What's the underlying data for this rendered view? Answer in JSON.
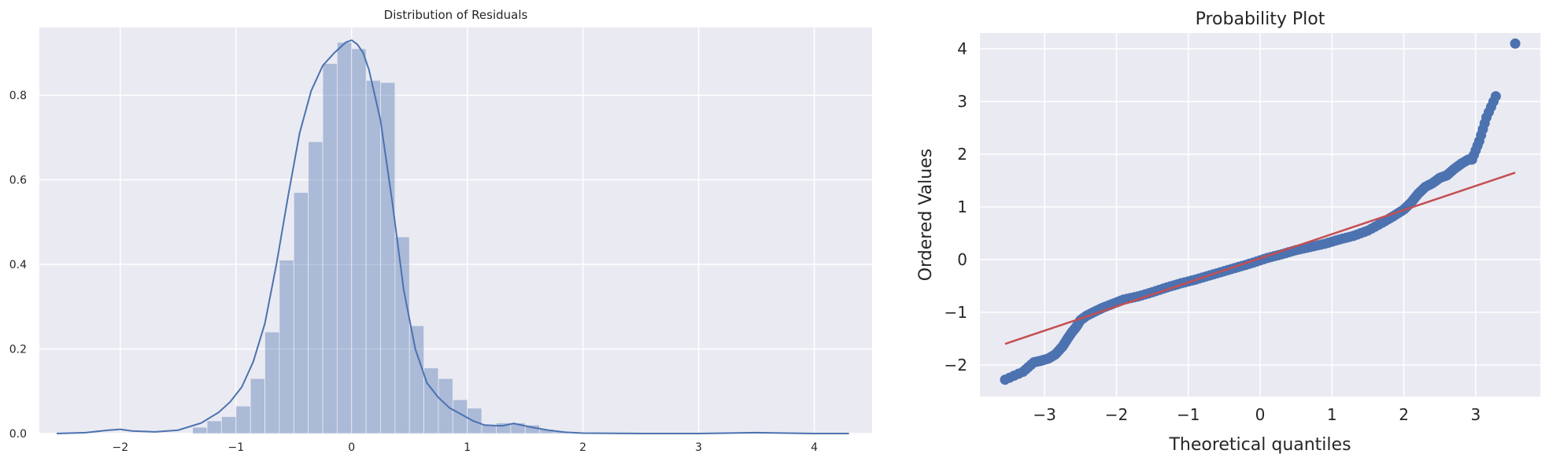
{
  "chart_data": [
    {
      "type": "bar",
      "title": "Distribution of Residuals",
      "xlabel": "",
      "ylabel": "",
      "xlim": [
        -2.7,
        4.5
      ],
      "ylim": [
        0,
        0.96
      ],
      "xticks": [
        "−2",
        "−1",
        "0",
        "1",
        "2",
        "3",
        "4"
      ],
      "xtick_values": [
        -2,
        -1,
        0,
        1,
        2,
        3,
        4
      ],
      "yticks": [
        "0.0",
        "0.2",
        "0.4",
        "0.6",
        "0.8"
      ],
      "ytick_values": [
        0,
        0.2,
        0.4,
        0.6,
        0.8
      ],
      "grid": true,
      "histogram": {
        "bin_width": 0.125,
        "bin_starts": [
          -1.375,
          -1.25,
          -1.125,
          -1.0,
          -0.875,
          -0.75,
          -0.625,
          -0.5,
          -0.375,
          -0.25,
          -0.125,
          0.0,
          0.125,
          0.25,
          0.375,
          0.5,
          0.625,
          0.75,
          0.875,
          1.0,
          1.125,
          1.25,
          1.375,
          1.5,
          1.625,
          1.75
        ],
        "densities": [
          0.015,
          0.03,
          0.04,
          0.065,
          0.13,
          0.24,
          0.41,
          0.57,
          0.69,
          0.875,
          0.925,
          0.91,
          0.835,
          0.83,
          0.465,
          0.255,
          0.155,
          0.13,
          0.08,
          0.06,
          0.02,
          0.025,
          0.025,
          0.02,
          0.01,
          0.005
        ]
      },
      "kde_curve": {
        "x": [
          -2.55,
          -2.3,
          -2.1,
          -2.0,
          -1.9,
          -1.7,
          -1.5,
          -1.3,
          -1.15,
          -1.05,
          -0.95,
          -0.85,
          -0.75,
          -0.65,
          -0.55,
          -0.45,
          -0.35,
          -0.25,
          -0.15,
          -0.05,
          0.0,
          0.05,
          0.1,
          0.15,
          0.25,
          0.35,
          0.45,
          0.55,
          0.65,
          0.75,
          0.85,
          0.95,
          1.05,
          1.15,
          1.3,
          1.4,
          1.55,
          1.7,
          1.85,
          2.0,
          2.5,
          3.0,
          3.5,
          4.0,
          4.3
        ],
        "y": [
          0.0,
          0.002,
          0.008,
          0.01,
          0.006,
          0.004,
          0.008,
          0.025,
          0.05,
          0.075,
          0.11,
          0.17,
          0.26,
          0.4,
          0.56,
          0.71,
          0.81,
          0.87,
          0.9,
          0.925,
          0.93,
          0.92,
          0.9,
          0.86,
          0.74,
          0.55,
          0.34,
          0.2,
          0.12,
          0.085,
          0.06,
          0.045,
          0.03,
          0.02,
          0.018,
          0.024,
          0.015,
          0.008,
          0.003,
          0.001,
          0.0,
          0.0,
          0.002,
          0.0,
          0.0
        ]
      },
      "colors": {
        "bar": "#4c72b0",
        "line": "#4c72b0",
        "background": "#eaeaf2"
      }
    },
    {
      "type": "scatter",
      "title": "Probability Plot",
      "xlabel": "Theoretical quantiles",
      "ylabel": "Ordered Values",
      "xlim": [
        -3.9,
        3.9
      ],
      "ylim": [
        -2.6,
        4.3
      ],
      "xticks": [
        "−3",
        "−2",
        "−1",
        "0",
        "1",
        "2",
        "3"
      ],
      "xtick_values": [
        -3,
        -2,
        -1,
        0,
        1,
        2,
        3
      ],
      "yticks": [
        "−2",
        "−1",
        "0",
        "1",
        "2",
        "3",
        "4"
      ],
      "ytick_values": [
        -2,
        -1,
        0,
        1,
        2,
        3,
        4
      ],
      "grid": true,
      "points": {
        "x": [
          -3.55,
          -3.3,
          -3.15,
          -3.05,
          -2.95,
          -2.85,
          -2.75,
          -2.68,
          -2.62,
          -2.56,
          -2.5,
          -2.42,
          -2.32,
          -2.2,
          -2.05,
          -1.9,
          -1.7,
          -1.5,
          -1.3,
          -1.1,
          -0.9,
          -0.7,
          -0.5,
          -0.3,
          -0.1,
          0.1,
          0.3,
          0.5,
          0.7,
          0.9,
          1.1,
          1.3,
          1.5,
          1.7,
          1.85,
          2.0,
          2.1,
          2.2,
          2.3,
          2.4,
          2.5,
          2.6,
          2.7,
          2.8,
          2.9,
          2.95,
          3.05,
          3.15,
          3.28,
          3.55
        ],
        "y": [
          -2.28,
          -2.13,
          -1.95,
          -1.92,
          -1.88,
          -1.8,
          -1.65,
          -1.5,
          -1.38,
          -1.28,
          -1.15,
          -1.07,
          -1.0,
          -0.92,
          -0.84,
          -0.76,
          -0.7,
          -0.62,
          -0.53,
          -0.45,
          -0.38,
          -0.3,
          -0.22,
          -0.14,
          -0.06,
          0.03,
          0.1,
          0.18,
          0.24,
          0.3,
          0.38,
          0.45,
          0.55,
          0.7,
          0.82,
          0.95,
          1.08,
          1.25,
          1.38,
          1.45,
          1.55,
          1.6,
          1.72,
          1.82,
          1.9,
          1.9,
          2.25,
          2.7,
          3.1,
          4.1
        ]
      },
      "fit_line": {
        "x": [
          -3.55,
          3.55
        ],
        "y": [
          -1.6,
          1.65
        ]
      },
      "colors": {
        "points": "#4c72b0",
        "line": "#c44e52",
        "background": "#eaeaf2"
      }
    }
  ]
}
